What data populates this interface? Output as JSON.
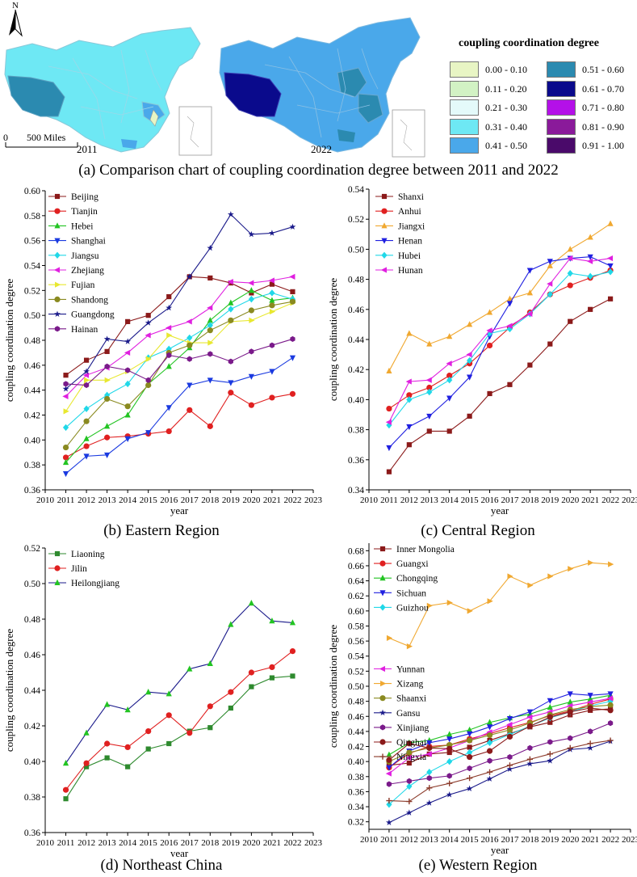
{
  "map_panel": {
    "north_label": "N",
    "scale_zero": "0",
    "scale_label": "500 Miles",
    "year_left": "2011",
    "year_right": "2022",
    "legend_title": "coupling coordination degree",
    "legend": [
      {
        "label": "0.00 - 0.10",
        "color": "#e8f5c4"
      },
      {
        "label": "0.11 - 0.20",
        "color": "#d2f2c4"
      },
      {
        "label": "0.21 - 0.30",
        "color": "#e4fafa"
      },
      {
        "label": "0.31 - 0.40",
        "color": "#6ee8f4"
      },
      {
        "label": "0.41 - 0.50",
        "color": "#4aa8ea"
      },
      {
        "label": "0.51 - 0.60",
        "color": "#2b8ab0"
      },
      {
        "label": "0.61 - 0.70",
        "color": "#0a0a8c"
      },
      {
        "label": "0.71 - 0.80",
        "color": "#b410e8"
      },
      {
        "label": "0.81 - 0.90",
        "color": "#8a1a9a"
      },
      {
        "label": "0.91 - 1.00",
        "color": "#4a0a6a"
      }
    ],
    "caption": "(a) Comparison chart of coupling coordination degree between 2011 and 2022"
  },
  "chart_data": [
    {
      "id": "eastern",
      "type": "line",
      "caption": "(b) Eastern Region",
      "xlabel": "year",
      "ylabel": "coupling coordination degree",
      "xlim": [
        2010,
        2023
      ],
      "ylim": [
        0.36,
        0.6
      ],
      "yticks": [
        "0.36",
        "0.38",
        "0.40",
        "0.42",
        "0.44",
        "0.46",
        "0.48",
        "0.50",
        "0.52",
        "0.54",
        "0.56",
        "0.58",
        "0.60"
      ],
      "xticks": [
        "2010",
        "2011",
        "2012",
        "2013",
        "2014",
        "2015",
        "2016",
        "2017",
        "2018",
        "2019",
        "2020",
        "2021",
        "2022",
        "2023"
      ],
      "x": [
        2011,
        2012,
        2013,
        2014,
        2015,
        2016,
        2017,
        2018,
        2019,
        2020,
        2021,
        2022
      ],
      "series": [
        {
          "name": "Beijing",
          "color": "#8b1a1a",
          "marker": "square",
          "values": [
            0.452,
            0.464,
            0.471,
            0.495,
            0.5,
            0.515,
            0.531,
            0.53,
            0.526,
            0.518,
            0.525,
            0.519
          ]
        },
        {
          "name": "Tianjin",
          "color": "#e02020",
          "marker": "circle",
          "values": [
            0.386,
            0.395,
            0.402,
            0.403,
            0.405,
            0.407,
            0.424,
            0.411,
            0.438,
            0.428,
            0.434,
            0.437
          ]
        },
        {
          "name": "Hebei",
          "color": "#22c422",
          "marker": "triangle",
          "values": [
            0.382,
            0.401,
            0.411,
            0.42,
            0.445,
            0.459,
            0.474,
            0.496,
            0.51,
            0.52,
            0.512,
            0.514
          ]
        },
        {
          "name": "Shanghai",
          "color": "#1a3ae0",
          "marker": "tridown",
          "values": [
            0.373,
            0.387,
            0.388,
            0.401,
            0.406,
            0.426,
            0.444,
            0.448,
            0.446,
            0.451,
            0.455,
            0.466
          ]
        },
        {
          "name": "Jiangsu",
          "color": "#20d8e8",
          "marker": "diamond",
          "values": [
            0.41,
            0.425,
            0.436,
            0.445,
            0.466,
            0.473,
            0.482,
            0.492,
            0.505,
            0.513,
            0.518,
            0.513
          ]
        },
        {
          "name": "Zhejiang",
          "color": "#e020e0",
          "marker": "triLeft",
          "values": [
            0.435,
            0.452,
            0.458,
            0.47,
            0.484,
            0.49,
            0.495,
            0.506,
            0.527,
            0.526,
            0.528,
            0.531
          ]
        },
        {
          "name": "Fujian",
          "color": "#e8e830",
          "marker": "triRight",
          "values": [
            0.423,
            0.448,
            0.448,
            0.455,
            0.465,
            0.484,
            0.478,
            0.478,
            0.495,
            0.496,
            0.503,
            0.51
          ]
        },
        {
          "name": "Shandong",
          "color": "#8a8a20",
          "marker": "circle",
          "values": [
            0.394,
            0.415,
            0.433,
            0.427,
            0.444,
            0.47,
            0.476,
            0.488,
            0.496,
            0.504,
            0.508,
            0.511
          ]
        },
        {
          "name": "Guangdong",
          "color": "#1a1a8a",
          "marker": "star",
          "values": [
            0.441,
            0.455,
            0.481,
            0.479,
            0.494,
            0.506,
            0.531,
            0.554,
            0.581,
            0.565,
            0.566,
            0.571
          ]
        },
        {
          "name": "Hainan",
          "color": "#7a1a8a",
          "marker": "hexagon",
          "values": [
            0.445,
            0.444,
            0.459,
            0.456,
            0.448,
            0.468,
            0.465,
            0.469,
            0.463,
            0.471,
            0.476,
            0.481
          ]
        }
      ]
    },
    {
      "id": "central",
      "type": "line",
      "caption": "(c) Central Region",
      "xlabel": "year",
      "ylabel": "coupling coordination degree",
      "xlim": [
        2010,
        2023
      ],
      "ylim": [
        0.34,
        0.54
      ],
      "yticks": [
        "0.34",
        "0.36",
        "0.38",
        "0.40",
        "0.42",
        "0.44",
        "0.46",
        "0.48",
        "0.50",
        "0.52",
        "0.54"
      ],
      "xticks": [
        "2010",
        "2011",
        "2012",
        "2013",
        "2014",
        "2015",
        "2016",
        "2017",
        "2018",
        "2019",
        "2020",
        "2021",
        "2022",
        "2023"
      ],
      "x": [
        2011,
        2012,
        2013,
        2014,
        2015,
        2016,
        2017,
        2018,
        2019,
        2020,
        2021,
        2022
      ],
      "series": [
        {
          "name": "Shanxi",
          "color": "#8b1a1a",
          "marker": "square",
          "values": [
            0.352,
            0.37,
            0.379,
            0.379,
            0.389,
            0.404,
            0.41,
            0.423,
            0.437,
            0.452,
            0.46,
            0.467
          ]
        },
        {
          "name": "Anhui",
          "color": "#e02020",
          "marker": "circle",
          "values": [
            0.394,
            0.403,
            0.408,
            0.416,
            0.424,
            0.436,
            0.448,
            0.458,
            0.47,
            0.476,
            0.481,
            0.486
          ]
        },
        {
          "name": "Jiangxi",
          "color": "#f0a830",
          "marker": "triangle",
          "values": [
            0.419,
            0.444,
            0.437,
            0.442,
            0.45,
            0.458,
            0.467,
            0.471,
            0.489,
            0.5,
            0.508,
            0.517
          ]
        },
        {
          "name": "Henan",
          "color": "#2020e0",
          "marker": "tridown",
          "values": [
            0.368,
            0.382,
            0.389,
            0.401,
            0.415,
            0.442,
            0.464,
            0.486,
            0.492,
            0.494,
            0.495,
            0.489
          ]
        },
        {
          "name": "Hubei",
          "color": "#20d8e8",
          "marker": "diamond",
          "values": [
            0.383,
            0.4,
            0.405,
            0.413,
            0.426,
            0.444,
            0.447,
            0.457,
            0.47,
            0.484,
            0.482,
            0.485
          ]
        },
        {
          "name": "Hunan",
          "color": "#e020e0",
          "marker": "triLeft",
          "values": [
            0.385,
            0.412,
            0.413,
            0.424,
            0.43,
            0.446,
            0.449,
            0.457,
            0.477,
            0.494,
            0.492,
            0.494
          ]
        }
      ]
    },
    {
      "id": "northeast",
      "type": "line",
      "caption": "(d) Northeast China",
      "xlabel": "year",
      "ylabel": "coupling coordination degree",
      "xlim": [
        2010,
        2023
      ],
      "ylim": [
        0.36,
        0.52
      ],
      "yticks": [
        "0.36",
        "0.38",
        "0.40",
        "0.42",
        "0.44",
        "0.46",
        "0.48",
        "0.50",
        "0.52"
      ],
      "xticks": [
        "2010",
        "2011",
        "2012",
        "2013",
        "2014",
        "2015",
        "2016",
        "2017",
        "2018",
        "2019",
        "2020",
        "2021",
        "2022",
        "2023"
      ],
      "x": [
        2011,
        2012,
        2013,
        2014,
        2015,
        2016,
        2017,
        2018,
        2019,
        2020,
        2021,
        2022
      ],
      "series": [
        {
          "name": "Liaoning",
          "color": "#2e8a2e",
          "marker": "square",
          "values": [
            0.379,
            0.397,
            0.402,
            0.397,
            0.407,
            0.41,
            0.417,
            0.419,
            0.43,
            0.442,
            0.447,
            0.448
          ]
        },
        {
          "name": "Jilin",
          "color": "#e02020",
          "marker": "circle",
          "values": [
            0.384,
            0.399,
            0.41,
            0.408,
            0.417,
            0.426,
            0.416,
            0.431,
            0.439,
            0.45,
            0.453,
            0.462
          ]
        },
        {
          "name": "Heilongjiang",
          "color": "#22c422",
          "lineColor": "#1a1a8a",
          "marker": "triangle",
          "values": [
            0.399,
            0.416,
            0.432,
            0.429,
            0.439,
            0.438,
            0.452,
            0.455,
            0.477,
            0.489,
            0.479,
            0.478
          ]
        }
      ]
    },
    {
      "id": "western",
      "type": "line",
      "caption": "(e) Western Region",
      "xlabel": "year",
      "ylabel": "coupling coordination degree",
      "xlim": [
        2010,
        2023
      ],
      "ylim": [
        0.31,
        0.69
      ],
      "yticks": [
        "0.32",
        "0.34",
        "0.36",
        "0.38",
        "0.40",
        "0.42",
        "0.44",
        "0.46",
        "0.48",
        "0.50",
        "0.52",
        "0.54",
        "0.56",
        "0.58",
        "0.60",
        "0.62",
        "0.64",
        "0.66",
        "0.68"
      ],
      "xticks": [
        "2010",
        "2011",
        "2012",
        "2013",
        "2014",
        "2015",
        "2016",
        "2017",
        "2018",
        "2019",
        "2020",
        "2021",
        "2022",
        "2023"
      ],
      "x": [
        2011,
        2012,
        2013,
        2014,
        2015,
        2016,
        2017,
        2018,
        2019,
        2020,
        2021,
        2022
      ],
      "series": [
        {
          "name": "Inner Mongolia",
          "color": "#8b1a1a",
          "marker": "square",
          "values": [
            0.395,
            0.398,
            0.41,
            0.412,
            0.419,
            0.428,
            0.437,
            0.446,
            0.452,
            0.462,
            0.468,
            0.47
          ]
        },
        {
          "name": "Guangxi",
          "color": "#e02020",
          "marker": "circle",
          "values": [
            0.392,
            0.411,
            0.42,
            0.422,
            0.43,
            0.437,
            0.445,
            0.452,
            0.461,
            0.467,
            0.476,
            0.483
          ]
        },
        {
          "name": "Chongqing",
          "color": "#22c422",
          "marker": "triangle",
          "values": [
            0.409,
            0.425,
            0.428,
            0.436,
            0.442,
            0.452,
            0.458,
            0.463,
            0.472,
            0.479,
            0.483,
            0.488
          ]
        },
        {
          "name": "Sichuan",
          "color": "#2020e0",
          "marker": "tridown",
          "values": [
            0.392,
            0.414,
            0.425,
            0.43,
            0.437,
            0.446,
            0.457,
            0.466,
            0.481,
            0.49,
            0.488,
            0.49
          ]
        },
        {
          "name": "Guizhou",
          "color": "#20d8e8",
          "marker": "diamond",
          "values": [
            0.343,
            0.367,
            0.386,
            0.4,
            0.412,
            0.425,
            0.436,
            0.447,
            0.458,
            0.466,
            0.474,
            0.48
          ]
        },
        {
          "name": "Yunnan",
          "color": "#e020e0",
          "marker": "triLeft",
          "values": [
            0.384,
            0.405,
            0.41,
            0.418,
            0.428,
            0.439,
            0.449,
            0.459,
            0.466,
            0.474,
            0.479,
            0.484
          ]
        },
        {
          "name": "Xizang",
          "color": "#f0a830",
          "marker": "triRight",
          "values": [
            0.564,
            0.553,
            0.607,
            0.611,
            0.6,
            0.613,
            0.646,
            0.634,
            0.646,
            0.656,
            0.664,
            0.662
          ]
        },
        {
          "name": "Shaanxi",
          "color": "#8a8a20",
          "marker": "circle",
          "values": [
            0.4,
            0.412,
            0.418,
            0.422,
            0.428,
            0.435,
            0.442,
            0.451,
            0.462,
            0.469,
            0.473,
            0.475
          ]
        },
        {
          "name": "Gansu",
          "color": "#1a1a8a",
          "marker": "star",
          "values": [
            0.319,
            0.332,
            0.345,
            0.356,
            0.364,
            0.377,
            0.39,
            0.397,
            0.401,
            0.416,
            0.418,
            0.427
          ]
        },
        {
          "name": "Xinjiang",
          "color": "#7a1a8a",
          "marker": "hexagon",
          "values": [
            0.37,
            0.374,
            0.378,
            0.381,
            0.391,
            0.401,
            0.406,
            0.418,
            0.426,
            0.431,
            0.44,
            0.451
          ]
        },
        {
          "name": "Qinghai",
          "color": "#8b1a1a",
          "marker": "circle",
          "values": [
            0.402,
            0.424,
            0.418,
            0.417,
            0.406,
            0.414,
            0.433,
            0.447,
            0.459,
            0.466,
            0.471,
            0.468
          ]
        },
        {
          "name": "Ningxia",
          "color": "#8b3a2a",
          "marker": "plus",
          "values": [
            0.348,
            0.347,
            0.365,
            0.371,
            0.378,
            0.386,
            0.395,
            0.403,
            0.41,
            0.418,
            0.424,
            0.428
          ]
        }
      ]
    }
  ]
}
